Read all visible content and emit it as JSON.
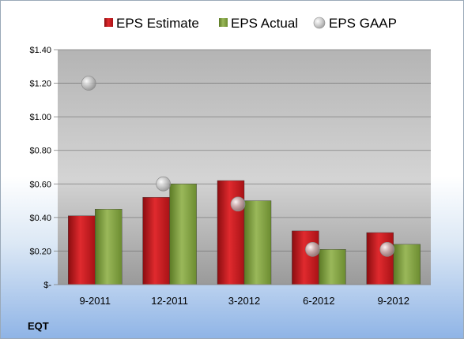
{
  "ticker": "EQT",
  "chart_data": {
    "type": "bar",
    "categories": [
      "9-2011",
      "12-2011",
      "3-2012",
      "6-2012",
      "9-2012"
    ],
    "series": [
      {
        "name": "EPS Estimate",
        "type": "bar",
        "color": "#c0171b",
        "values": [
          0.41,
          0.52,
          0.62,
          0.32,
          0.31
        ]
      },
      {
        "name": "EPS Actual",
        "type": "bar",
        "color": "#7a9a3a",
        "values": [
          0.45,
          0.6,
          0.5,
          0.21,
          0.24
        ]
      },
      {
        "name": "EPS GAAP",
        "type": "scatter",
        "color": "#b5b5b5",
        "values": [
          1.2,
          0.6,
          0.48,
          0.21,
          0.21
        ]
      }
    ],
    "ylim": [
      0,
      1.4
    ],
    "yticks": [
      0,
      0.2,
      0.4,
      0.6,
      0.8,
      1.0,
      1.2,
      1.4
    ],
    "ytick_labels": [
      "$-",
      "$0.20",
      "$0.40",
      "$0.60",
      "$0.80",
      "$1.00",
      "$1.20",
      "$1.40"
    ],
    "grid": true,
    "legend_position": "top"
  }
}
